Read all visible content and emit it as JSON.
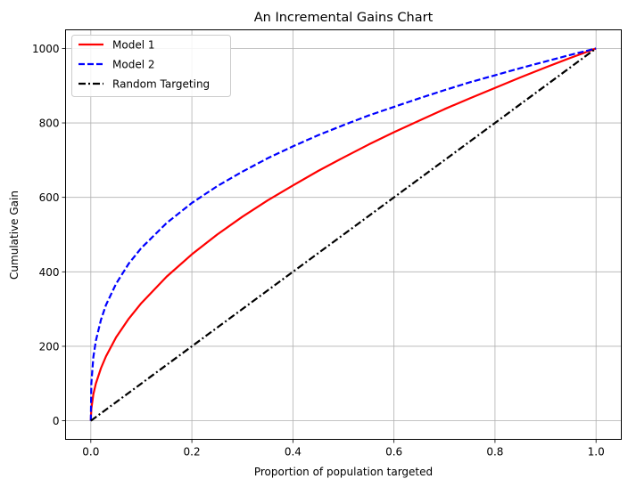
{
  "chart_data": {
    "type": "line",
    "title": "An Incremental Gains Chart",
    "xlabel": "Proportion of population targeted",
    "ylabel": "Cumulative Gain",
    "xlim": [
      -0.05,
      1.05
    ],
    "ylim": [
      -50,
      1050
    ],
    "xticks": [
      0.0,
      0.2,
      0.4,
      0.6,
      0.8,
      1.0
    ],
    "xtick_labels": [
      "0.0",
      "0.2",
      "0.4",
      "0.6",
      "0.8",
      "1.0"
    ],
    "yticks": [
      0,
      200,
      400,
      600,
      800,
      1000
    ],
    "ytick_labels": [
      "0",
      "200",
      "400",
      "600",
      "800",
      "1000"
    ],
    "grid": true,
    "legend_position": "top-left",
    "series": [
      {
        "name": "Model 1",
        "color": "#ff0000",
        "style": "solid",
        "x": [
          0,
          0.001,
          0.005,
          0.01,
          0.02,
          0.03,
          0.05,
          0.075,
          0.1,
          0.15,
          0.2,
          0.25,
          0.3,
          0.35,
          0.4,
          0.45,
          0.5,
          0.55,
          0.6,
          0.65,
          0.7,
          0.75,
          0.8,
          0.85,
          0.9,
          0.95,
          1.0
        ],
        "y": [
          0,
          32,
          71,
          100,
          141,
          173,
          224,
          274,
          316,
          387,
          447,
          500,
          548,
          592,
          632,
          671,
          707,
          742,
          775,
          806,
          837,
          866,
          894,
          922,
          949,
          975,
          1000
        ]
      },
      {
        "name": "Model 2",
        "color": "#0000ff",
        "style": "dashed",
        "x": [
          0,
          0.001,
          0.005,
          0.01,
          0.02,
          0.03,
          0.05,
          0.075,
          0.1,
          0.15,
          0.2,
          0.25,
          0.3,
          0.35,
          0.4,
          0.45,
          0.5,
          0.55,
          0.6,
          0.65,
          0.7,
          0.75,
          0.8,
          0.85,
          0.9,
          0.95,
          1.0
        ],
        "y": [
          0,
          100,
          171,
          215,
          271,
          311,
          368,
          422,
          464,
          531,
          585,
          630,
          669,
          705,
          737,
          767,
          794,
          820,
          843,
          866,
          888,
          909,
          928,
          947,
          965,
          983,
          1000
        ]
      },
      {
        "name": "Random Targeting",
        "color": "#000000",
        "style": "dashdot",
        "x": [
          0,
          1.0
        ],
        "y": [
          0,
          1000
        ]
      }
    ]
  }
}
